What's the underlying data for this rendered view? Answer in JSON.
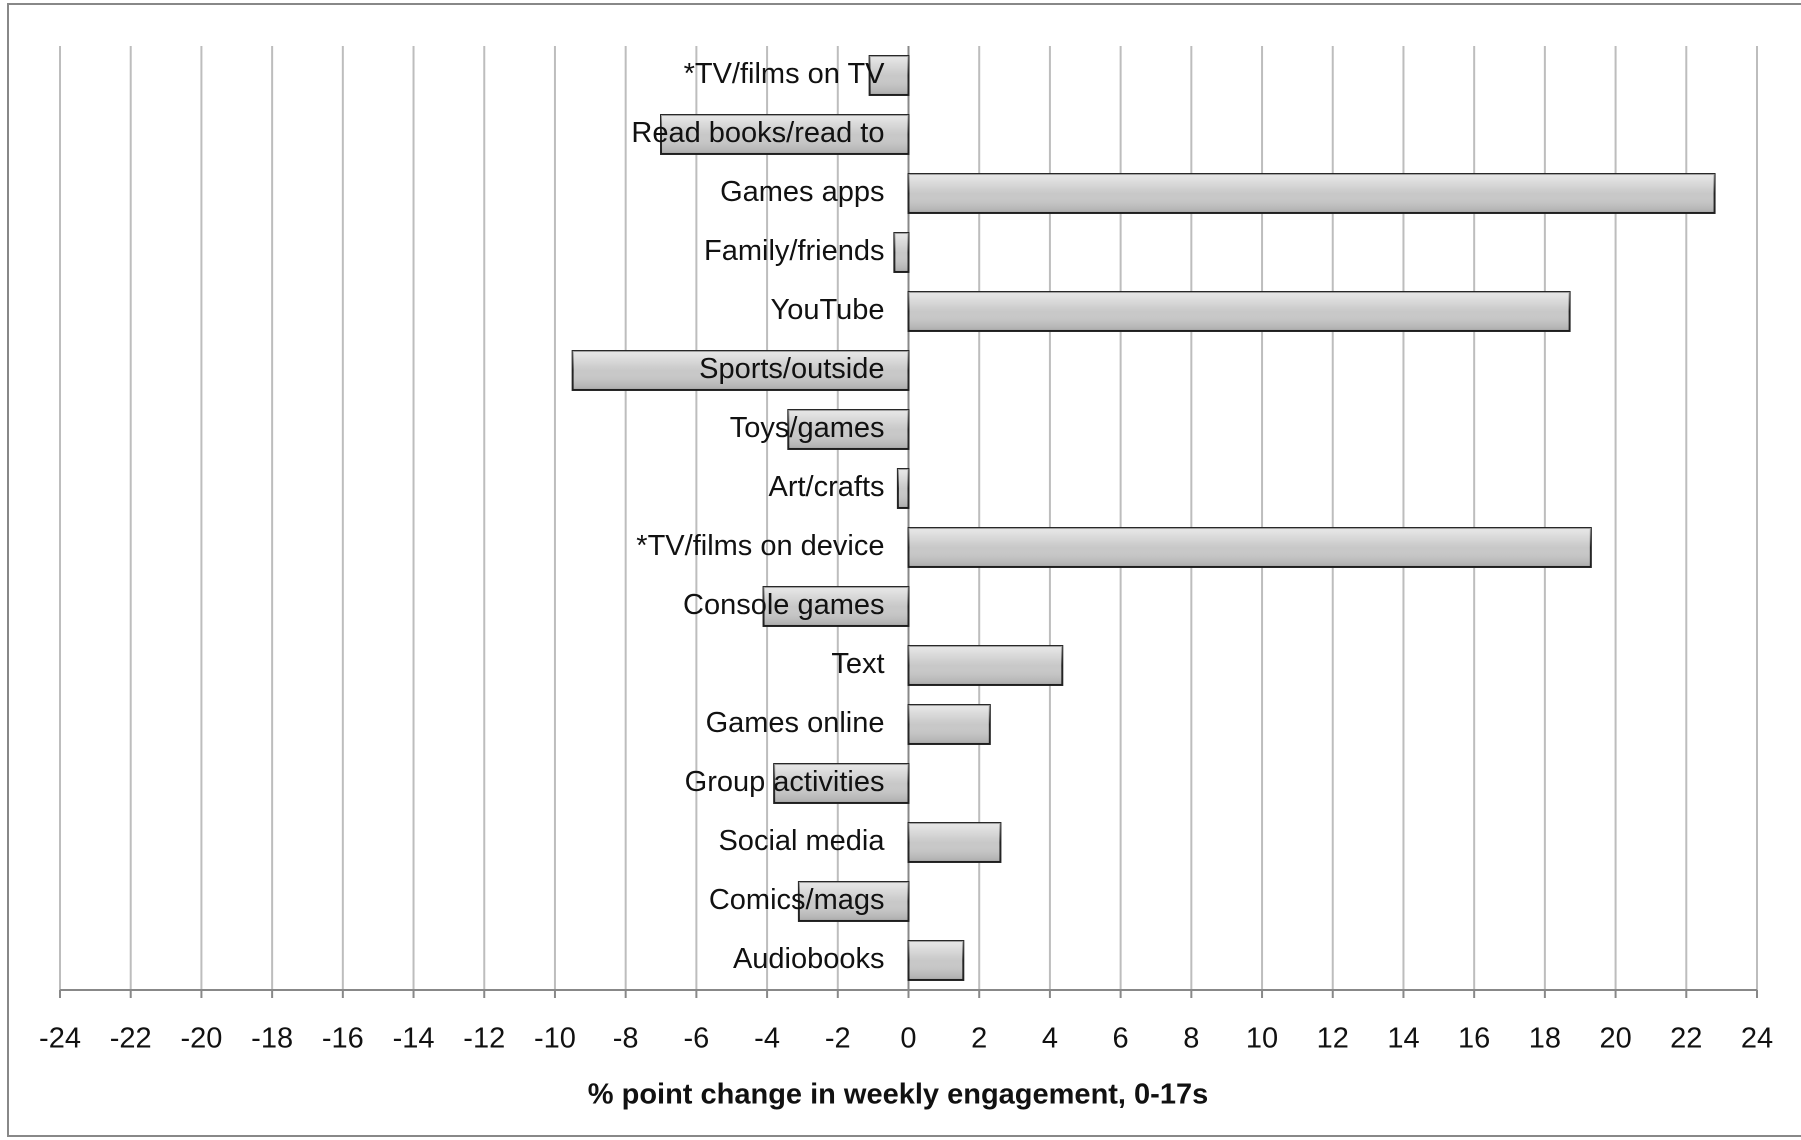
{
  "chart_data": {
    "type": "barh",
    "categories": [
      "*TV/films on TV",
      "Read books/read to",
      "Games apps",
      "Family/friends",
      "YouTube",
      "Sports/outside",
      "Toys/games",
      "Art/crafts",
      "*TV/films on device",
      "Console games",
      "Text",
      "Games online",
      "Group activities",
      "Social media",
      "Comics/mags",
      "Audiobooks"
    ],
    "values": [
      -1.1,
      -7.0,
      22.8,
      -0.4,
      18.7,
      -9.5,
      -3.4,
      -0.3,
      19.3,
      -4.1,
      4.35,
      2.3,
      -3.8,
      2.6,
      -3.1,
      1.55
    ],
    "color": "#c8c8c8",
    "xlabel": "% point change in weekly engagement, 0-17s",
    "xlim": [
      -24,
      24
    ],
    "xticks": [
      -24,
      -22,
      -20,
      -18,
      -16,
      -14,
      -12,
      -10,
      -8,
      -6,
      -4,
      -2,
      0,
      2,
      4,
      6,
      8,
      10,
      12,
      14,
      16,
      18,
      20,
      22,
      24
    ],
    "grid": true
  }
}
